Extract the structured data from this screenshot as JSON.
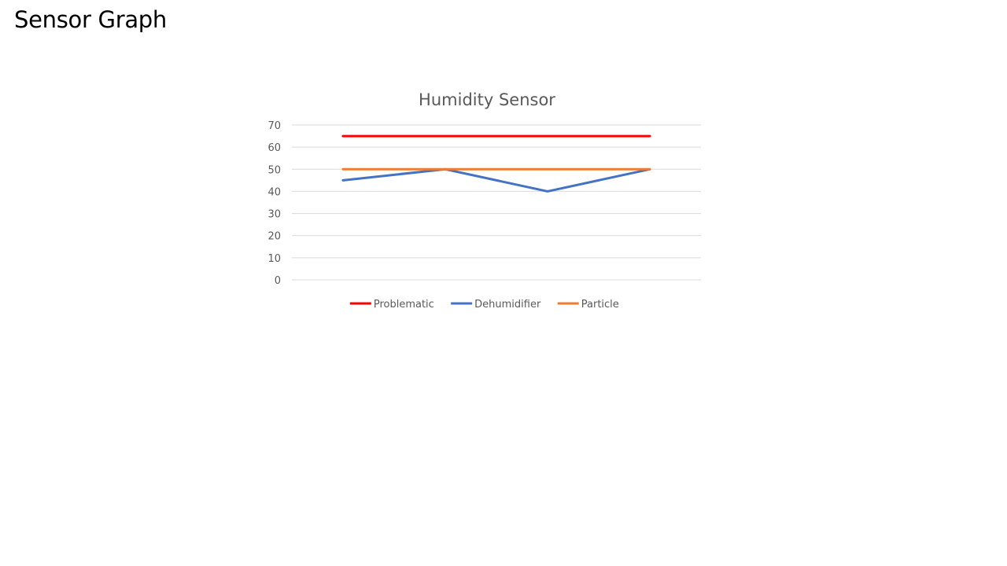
{
  "slide": {
    "title": "Sensor Graph"
  },
  "chart_data": {
    "type": "line",
    "title": "Humidity Sensor",
    "xlabel": "",
    "ylabel": "",
    "categories": [
      "",
      "",
      "",
      ""
    ],
    "ylim": [
      0,
      70
    ],
    "yticks": [
      0,
      10,
      20,
      30,
      40,
      50,
      60,
      70
    ],
    "grid": true,
    "legend_position": "bottom",
    "series": [
      {
        "name": "Problematic",
        "color": "#ff0000",
        "values": [
          65,
          65,
          65,
          65
        ]
      },
      {
        "name": "Dehumidifier",
        "color": "#4472c4",
        "values": [
          45,
          50,
          40,
          50
        ]
      },
      {
        "name": "Particle",
        "color": "#ed7d31",
        "values": [
          50,
          50,
          50,
          50
        ]
      }
    ]
  }
}
